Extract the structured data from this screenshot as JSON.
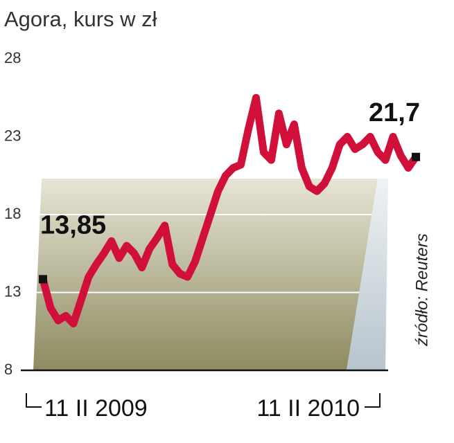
{
  "chart_data": {
    "type": "line",
    "title": "Agora, kurs w zł",
    "source": "źródło: Reuters",
    "categories": [
      "11 II 2009",
      null,
      null,
      null,
      null,
      null,
      null,
      null,
      null,
      null,
      null,
      null,
      null,
      null,
      null,
      null,
      null,
      null,
      null,
      null,
      null,
      null,
      null,
      null,
      null,
      null,
      null,
      null,
      null,
      null,
      null,
      null,
      null,
      null,
      null,
      null,
      null,
      null,
      null,
      null,
      null,
      null,
      null,
      null,
      "11 II 2010",
      null,
      null,
      null,
      null,
      null
    ],
    "values": [
      13.85,
      12,
      11.2,
      11.5,
      11,
      12.5,
      14,
      14.8,
      15.5,
      16.3,
      15.2,
      16,
      15.5,
      14.6,
      15.8,
      16.5,
      17.3,
      14.8,
      14.2,
      14,
      15,
      16.5,
      18,
      19.5,
      20.5,
      21,
      21.2,
      23.5,
      25.5,
      22,
      21.5,
      24.5,
      22.5,
      23.8,
      21,
      19.8,
      19.5,
      20,
      21,
      22.5,
      23,
      22.2,
      22.5,
      23,
      22,
      21.5,
      23,
      21.8,
      21,
      21.7
    ],
    "value_labels": [
      "13,85",
      null,
      null,
      null,
      null,
      null,
      null,
      null,
      null,
      null,
      null,
      null,
      null,
      null,
      null,
      null,
      null,
      null,
      null,
      null,
      null,
      null,
      null,
      null,
      null,
      null,
      null,
      null,
      null,
      null,
      null,
      null,
      null,
      null,
      null,
      null,
      null,
      null,
      null,
      null,
      null,
      null,
      null,
      null,
      null,
      null,
      null,
      null,
      null,
      "21,7"
    ],
    "color": "#d0103a",
    "ylim": [
      8,
      28
    ],
    "yticks": [
      8,
      13,
      18,
      23,
      28
    ],
    "grid": true
  }
}
